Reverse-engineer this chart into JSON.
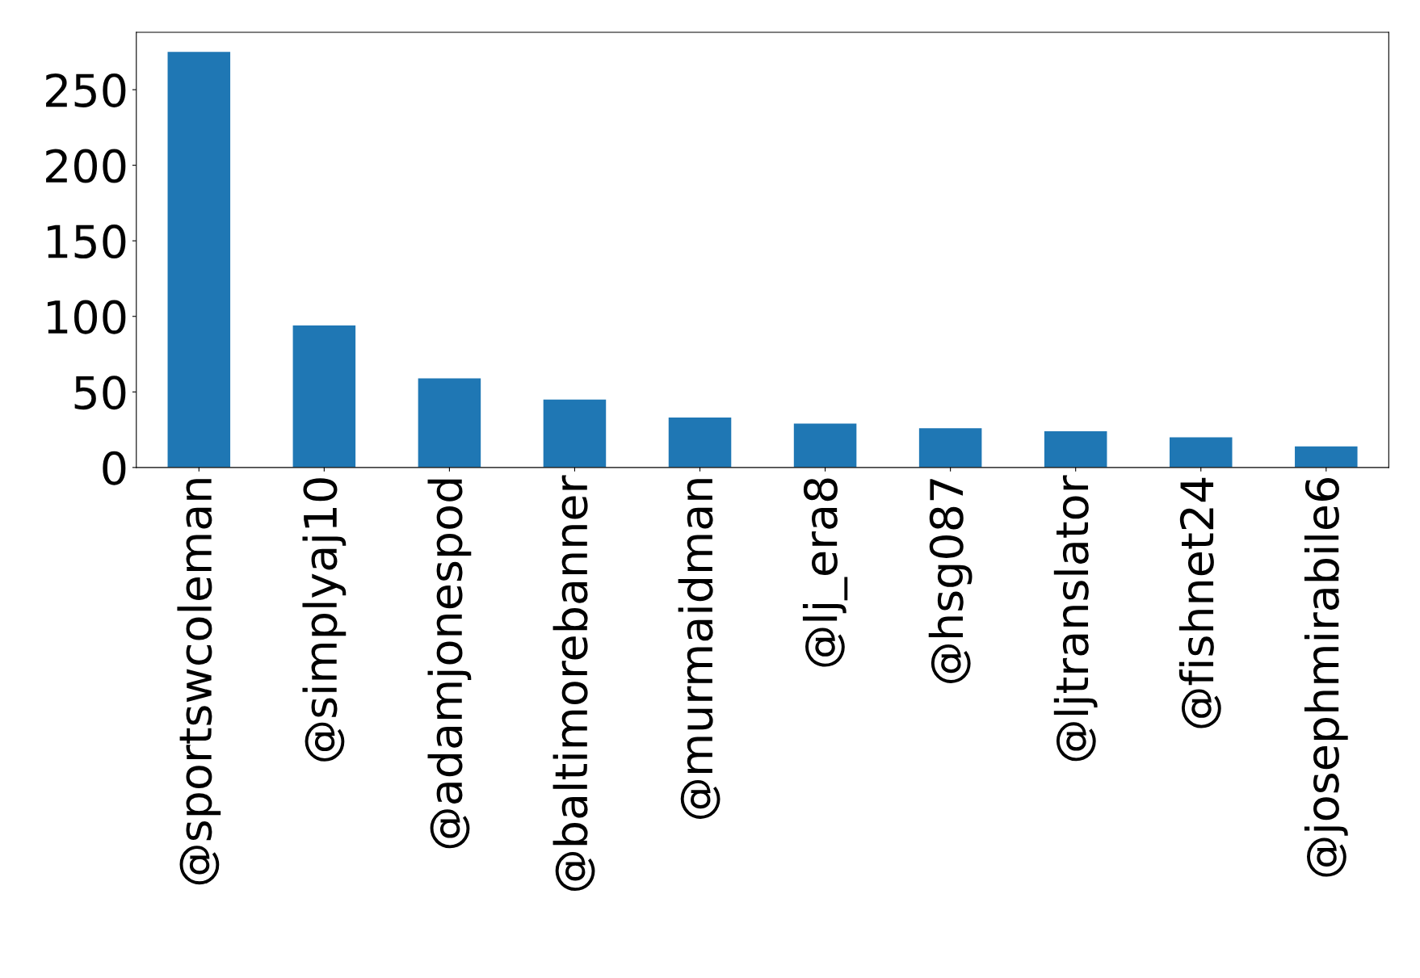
{
  "chart_data": {
    "type": "bar",
    "categories": [
      "@sportswcoleman",
      "@simplyaj10",
      "@adamjonespod",
      "@baltimorebanner",
      "@murmaidman",
      "@lj_era8",
      "@hsg087",
      "@ljtranslator",
      "@fishnet24",
      "@josephmirabile6"
    ],
    "values": [
      275,
      94,
      59,
      45,
      33,
      29,
      26,
      24,
      20,
      14
    ],
    "color": "#1f77b4",
    "ylim": [
      0,
      288
    ],
    "yticks": [
      0,
      50,
      100,
      150,
      200,
      250
    ],
    "grid": false,
    "legend": false
  }
}
